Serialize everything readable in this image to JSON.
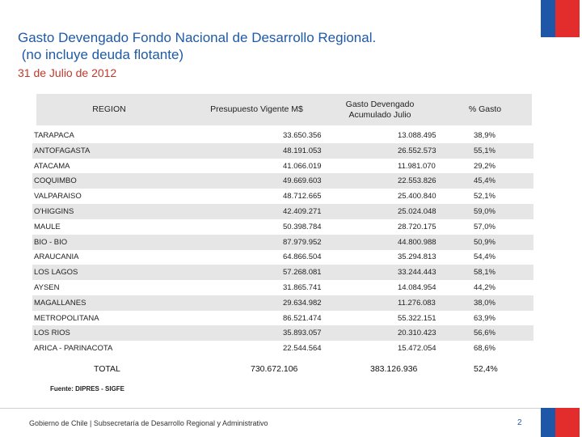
{
  "title": {
    "line1": "Gasto Devengado Fondo Nacional de Desarrollo Regional.",
    "line2": " (no incluye deuda flotante)",
    "date": "31 de Julio de 2012"
  },
  "table": {
    "headers": {
      "region": "REGION",
      "presupuesto": "Presupuesto Vigente M$",
      "gasto_line1": "Gasto Devengado",
      "gasto_line2": "Acumulado Julio",
      "pct": "% Gasto"
    },
    "rows": [
      {
        "region": "TARAPACA",
        "presupuesto": "33.650.356",
        "gasto": "13.088.495",
        "pct": "38,9%"
      },
      {
        "region": "ANTOFAGASTA",
        "presupuesto": "48.191.053",
        "gasto": "26.552.573",
        "pct": "55,1%"
      },
      {
        "region": "ATACAMA",
        "presupuesto": "41.066.019",
        "gasto": "11.981.070",
        "pct": "29,2%"
      },
      {
        "region": "COQUIMBO",
        "presupuesto": "49.669.603",
        "gasto": "22.553.826",
        "pct": "45,4%"
      },
      {
        "region": "VALPARAISO",
        "presupuesto": "48.712.665",
        "gasto": "25.400.840",
        "pct": "52,1%"
      },
      {
        "region": "O'HIGGINS",
        "presupuesto": "42.409.271",
        "gasto": "25.024.048",
        "pct": "59,0%"
      },
      {
        "region": "MAULE",
        "presupuesto": "50.398.784",
        "gasto": "28.720.175",
        "pct": "57,0%"
      },
      {
        "region": "BIO - BIO",
        "presupuesto": "87.979.952",
        "gasto": "44.800.988",
        "pct": "50,9%"
      },
      {
        "region": "ARAUCANIA",
        "presupuesto": "64.866.504",
        "gasto": "35.294.813",
        "pct": "54,4%"
      },
      {
        "region": "LOS LAGOS",
        "presupuesto": "57.268.081",
        "gasto": "33.244.443",
        "pct": "58,1%"
      },
      {
        "region": "AYSEN",
        "presupuesto": "31.865.741",
        "gasto": "14.084.954",
        "pct": "44,2%"
      },
      {
        "region": "MAGALLANES",
        "presupuesto": "29.634.982",
        "gasto": "11.276.083",
        "pct": "38,0%"
      },
      {
        "region": "METROPOLITANA",
        "presupuesto": "86.521.474",
        "gasto": "55.322.151",
        "pct": "63,9%"
      },
      {
        "region": "LOS RIOS",
        "presupuesto": "35.893.057",
        "gasto": "20.310.423",
        "pct": "56,6%"
      },
      {
        "region": "ARICA - PARINACOTA",
        "presupuesto": "22.544.564",
        "gasto": "15.472.054",
        "pct": "68,6%"
      }
    ],
    "total": {
      "label": "TOTAL",
      "presupuesto": "730.672.106",
      "gasto": "383.126.936",
      "pct": "52,4%"
    }
  },
  "source": "Fuente: DIPRES - SIGFE",
  "footer": "Gobierno de Chile | Subsecretaría de Desarrollo Regional y Administrativo",
  "page_number": "2",
  "colors": {
    "title_blue": "#1f5aa6",
    "date_red": "#c0392b",
    "flag_blue": "#1e56a8",
    "flag_red": "#e32d2d"
  }
}
